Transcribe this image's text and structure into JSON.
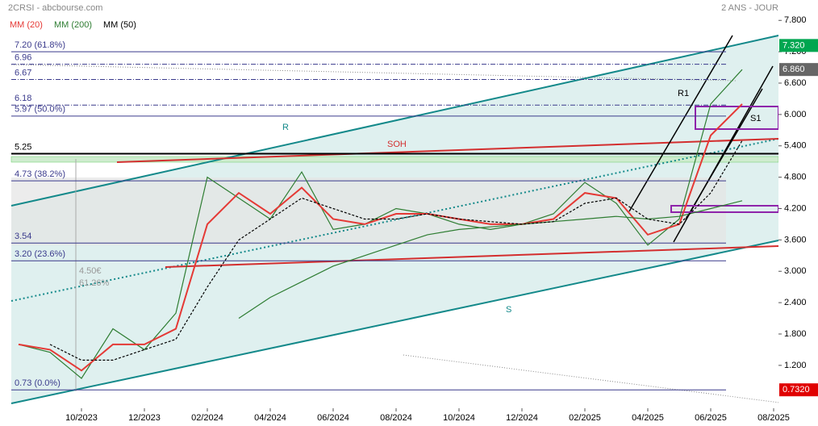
{
  "chart_data": {
    "type": "line",
    "title": "2CRSI - abcbourse.com",
    "subtitle": "2 ANS - JOUR",
    "x": [
      "2023-08",
      "2023-09",
      "2023-10",
      "2023-11",
      "2023-12",
      "2024-01",
      "2024-02",
      "2024-03",
      "2024-04",
      "2024-05",
      "2024-06",
      "2024-07",
      "2024-08",
      "2024-09",
      "2024-10",
      "2024-11",
      "2024-12",
      "2025-01",
      "2025-02",
      "2025-03",
      "2025-04",
      "2025-05",
      "2025-06",
      "2025-07"
    ],
    "xlim": [
      "2023-08",
      "2025-09"
    ],
    "xticks": [
      {
        "value": "2023-10",
        "label": "10/2023"
      },
      {
        "value": "2023-12",
        "label": "12/2023"
      },
      {
        "value": "2024-02",
        "label": "02/2024"
      },
      {
        "value": "2024-04",
        "label": "04/2024"
      },
      {
        "value": "2024-06",
        "label": "06/2024"
      },
      {
        "value": "2024-08",
        "label": "08/2024"
      },
      {
        "value": "2024-10",
        "label": "10/2024"
      },
      {
        "value": "2024-12",
        "label": "12/2024"
      },
      {
        "value": "2025-02",
        "label": "02/2025"
      },
      {
        "value": "2025-04",
        "label": "04/2025"
      },
      {
        "value": "2025-06",
        "label": "06/2025"
      },
      {
        "value": "2025-08",
        "label": "08/2025"
      }
    ],
    "ylim": [
      0.04,
      8.19
    ],
    "yticks": [
      {
        "value": 7.8,
        "label": "7.800"
      },
      {
        "value": 7.2,
        "label": "7.200"
      },
      {
        "value": 6.6,
        "label": "6.600"
      },
      {
        "value": 6.0,
        "label": "6.000"
      },
      {
        "value": 5.4,
        "label": "5.400"
      },
      {
        "value": 4.8,
        "label": "4.800"
      },
      {
        "value": 4.2,
        "label": "4.200"
      },
      {
        "value": 3.6,
        "label": "3.600"
      },
      {
        "value": 3.0,
        "label": "3.000"
      },
      {
        "value": 2.4,
        "label": "2.400"
      },
      {
        "value": 1.8,
        "label": "1.800"
      },
      {
        "value": 1.2,
        "label": "1.200"
      }
    ],
    "series": [
      {
        "name": "2CRSI",
        "color": "#2e7d32",
        "values": [
          1.6,
          1.45,
          0.95,
          1.9,
          1.5,
          2.2,
          4.8,
          4.4,
          4.0,
          4.9,
          3.8,
          3.9,
          4.2,
          4.1,
          3.9,
          3.8,
          3.9,
          4.1,
          4.7,
          4.3,
          3.5,
          4.0,
          6.2,
          6.86
        ]
      },
      {
        "name": "MM (20)",
        "color": "#e53935",
        "values": [
          1.6,
          1.5,
          1.1,
          1.6,
          1.6,
          1.9,
          3.9,
          4.5,
          4.1,
          4.6,
          4.0,
          3.9,
          4.1,
          4.1,
          4.0,
          3.9,
          3.9,
          4.0,
          4.5,
          4.4,
          3.7,
          3.9,
          5.6,
          6.2
        ]
      },
      {
        "name": "MM (200)",
        "color": "#2e7d32",
        "values": [
          null,
          null,
          null,
          null,
          null,
          null,
          null,
          2.1,
          2.5,
          2.8,
          3.1,
          3.3,
          3.5,
          3.7,
          3.8,
          3.85,
          3.9,
          3.95,
          4.0,
          4.05,
          4.0,
          4.05,
          4.2,
          4.35
        ]
      },
      {
        "name": "MM (50)",
        "color": "#000000",
        "dashed": true,
        "values": [
          null,
          1.6,
          1.3,
          1.3,
          1.5,
          1.7,
          2.7,
          3.6,
          4.0,
          4.4,
          4.2,
          4.0,
          4.0,
          4.1,
          4.0,
          3.95,
          3.9,
          3.95,
          4.3,
          4.4,
          4.0,
          3.9,
          4.5,
          5.5
        ]
      }
    ],
    "levels": [
      {
        "value": 7.2,
        "label": "7.20 (61.8%)"
      },
      {
        "value": 6.96,
        "label": "6.96"
      },
      {
        "value": 6.67,
        "label": "6.67"
      },
      {
        "value": 6.18,
        "label": "6.18"
      },
      {
        "value": 5.97,
        "label": "5.97 (50.0%)"
      },
      {
        "value": 5.25,
        "label": "5.25"
      },
      {
        "value": 4.73,
        "label": "4.73 (38.2%)"
      },
      {
        "value": 3.54,
        "label": "3.54"
      },
      {
        "value": 3.2,
        "label": "3.20 (23.6%)"
      },
      {
        "value": 0.73,
        "label": "0.73 (0.0%)"
      }
    ],
    "price_tags": [
      {
        "value": 7.32,
        "label": "7.320",
        "color": "#00a650"
      },
      {
        "value": 6.86,
        "label": "6.860",
        "color": "#666666"
      },
      {
        "value": 0.732,
        "label": "0.7320",
        "color": "#e00000"
      }
    ],
    "annotations": [
      "R",
      "SOH",
      "S",
      "R1",
      "S1",
      "4.50€",
      "61.26%"
    ],
    "grid": false
  }
}
